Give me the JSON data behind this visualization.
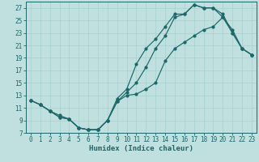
{
  "xlabel": "Humidex (Indice chaleur)",
  "bg_color": "#c0e0e0",
  "line_color": "#1a6868",
  "grid_color": "#a8d0d0",
  "xlim": [
    -0.5,
    23.5
  ],
  "ylim": [
    7,
    28
  ],
  "xticks": [
    0,
    1,
    2,
    3,
    4,
    5,
    6,
    7,
    8,
    9,
    10,
    11,
    12,
    13,
    14,
    15,
    16,
    17,
    18,
    19,
    20,
    21,
    22,
    23
  ],
  "yticks": [
    7,
    9,
    11,
    13,
    15,
    17,
    19,
    21,
    23,
    25,
    27
  ],
  "line1_x": [
    0,
    1,
    2,
    3,
    4,
    5,
    6,
    7,
    8,
    9,
    10,
    11,
    12,
    13,
    14,
    15,
    16,
    17,
    18,
    19,
    20,
    21,
    22,
    23
  ],
  "line1_y": [
    12.2,
    11.5,
    10.5,
    9.5,
    9.2,
    7.8,
    7.5,
    7.5,
    9.0,
    12.0,
    13.0,
    13.2,
    14.0,
    15.0,
    18.5,
    20.5,
    21.5,
    22.5,
    23.5,
    24.0,
    25.5,
    23.5,
    20.5,
    19.5
  ],
  "line2_x": [
    0,
    1,
    2,
    3,
    4,
    5,
    6,
    7,
    8,
    9,
    10,
    11,
    12,
    13,
    14,
    15,
    16,
    17,
    18,
    19,
    20,
    21,
    22,
    23
  ],
  "line2_y": [
    12.2,
    11.5,
    10.5,
    9.5,
    9.2,
    7.8,
    7.5,
    7.5,
    9.0,
    12.5,
    14.0,
    18.0,
    20.5,
    22.0,
    24.0,
    26.0,
    26.0,
    27.5,
    27.0,
    27.0,
    26.0,
    23.0,
    20.5,
    19.5
  ],
  "line3_x": [
    0,
    1,
    2,
    3,
    4,
    5,
    6,
    7,
    8,
    9,
    10,
    11,
    12,
    13,
    14,
    15,
    16,
    17,
    18,
    19,
    20,
    21,
    22,
    23
  ],
  "line3_y": [
    12.2,
    11.5,
    10.5,
    9.8,
    9.2,
    7.8,
    7.5,
    7.5,
    9.0,
    12.0,
    13.5,
    15.0,
    17.5,
    20.5,
    22.5,
    25.5,
    26.0,
    27.5,
    27.0,
    27.0,
    25.5,
    23.0,
    20.5,
    19.5
  ],
  "tick_fontsize": 5.5,
  "xlabel_fontsize": 6.5
}
